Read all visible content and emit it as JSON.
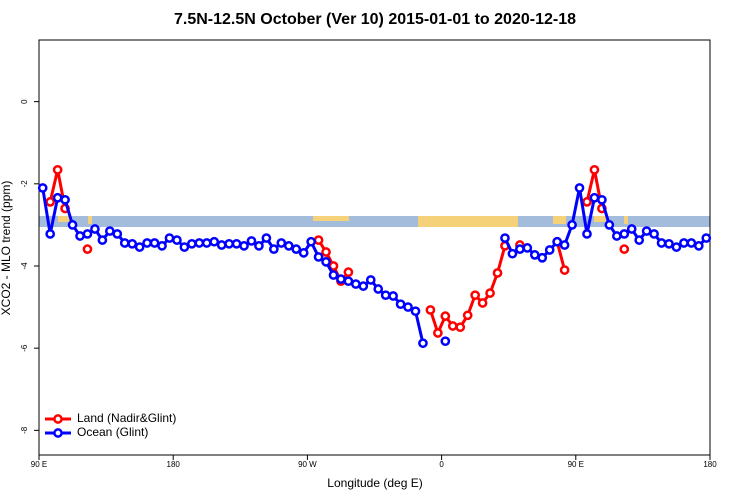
{
  "chart_data": {
    "type": "line",
    "title": "7.5N-12.5N October (Ver 10)   2015-01-01 to 2020-12-18",
    "x_label": "Longitude (deg E)",
    "y_label": "XCO2 - MLO trend (ppm)",
    "xlim": [
      90,
      540
    ],
    "xticks": [
      {
        "value": 90,
        "label": "90 E"
      },
      180,
      {
        "value": 270,
        "label": "90 W"
      },
      {
        "value": 360,
        "label": "0"
      },
      {
        "value": 450,
        "label": "90 E"
      },
      {
        "value": 540,
        "label": "180"
      }
    ],
    "ylim": [
      -8.6,
      1.5
    ],
    "yticks": [
      0,
      -2,
      -4,
      -6,
      -8
    ],
    "legend": "bottomleft",
    "x": [
      92.5,
      97.5,
      102.5,
      107.5,
      112.5,
      117.5,
      122.5,
      127.5,
      132.5,
      137.5,
      142.5,
      147.5,
      152.5,
      157.5,
      162.5,
      167.5,
      172.5,
      177.5,
      182.5,
      187.5,
      192.5,
      197.5,
      202.5,
      207.5,
      212.5,
      217.5,
      222.5,
      227.5,
      232.5,
      237.5,
      242.5,
      247.5,
      252.5,
      257.5,
      262.5,
      267.5,
      272.5,
      277.5,
      282.5,
      287.5,
      292.5,
      297.5,
      302.5,
      307.5,
      312.5,
      317.5,
      322.5,
      327.5,
      332.5,
      337.5,
      342.5,
      347.5,
      352.5,
      357.5,
      362.5,
      367.5,
      372.5,
      377.5,
      382.5,
      387.5,
      392.5,
      397.5,
      402.5,
      407.5,
      412.5,
      417.5,
      422.5,
      427.5,
      432.5,
      437.5,
      442.5,
      447.5,
      452.5,
      457.5,
      462.5,
      467.5,
      472.5,
      477.5,
      482.5,
      487.5,
      492.5,
      497.5,
      502.5,
      507.5,
      512.5,
      517.5,
      522.5,
      527.5,
      532.5,
      537.5
    ],
    "series": [
      {
        "name": "Land (Nadir&Glint)",
        "color": "#ff0000",
        "values": [
          null,
          -2.44,
          -1.66,
          -2.6,
          null,
          null,
          -3.59,
          null,
          null,
          null,
          null,
          null,
          null,
          null,
          null,
          null,
          null,
          null,
          null,
          null,
          null,
          null,
          null,
          null,
          null,
          null,
          null,
          null,
          null,
          null,
          null,
          null,
          null,
          null,
          null,
          null,
          null,
          -3.37,
          -3.66,
          -4.0,
          -4.37,
          -4.15,
          null,
          null,
          null,
          null,
          null,
          null,
          null,
          null,
          null,
          null,
          -5.07,
          -5.63,
          -5.22,
          -5.46,
          -5.49,
          -5.2,
          -4.71,
          -4.9,
          -4.66,
          -4.17,
          -3.51,
          null,
          -3.49,
          null,
          null,
          null,
          null,
          -3.41,
          -4.1,
          null,
          null,
          -2.44,
          -1.66,
          -2.6,
          null,
          null,
          -3.59,
          null,
          null,
          null,
          null,
          null,
          null,
          null,
          null,
          null,
          null,
          null
        ]
      },
      {
        "name": "Ocean (Glint)",
        "color": "#0000ff",
        "values": [
          -2.1,
          -3.22,
          -2.34,
          -2.39,
          -3.0,
          -3.27,
          -3.22,
          -3.1,
          -3.37,
          -3.15,
          -3.22,
          -3.44,
          -3.46,
          -3.54,
          -3.44,
          -3.44,
          -3.51,
          -3.32,
          -3.37,
          -3.54,
          -3.46,
          -3.44,
          -3.44,
          -3.41,
          -3.49,
          -3.46,
          -3.46,
          -3.51,
          -3.39,
          -3.51,
          -3.32,
          -3.59,
          -3.44,
          -3.51,
          -3.59,
          -3.68,
          -3.41,
          -3.78,
          -3.9,
          -4.22,
          -4.32,
          -4.37,
          -4.44,
          -4.49,
          -4.34,
          -4.56,
          -4.71,
          -4.73,
          -4.93,
          -5.0,
          -5.1,
          -5.88,
          null,
          null,
          -5.83,
          null,
          null,
          null,
          null,
          null,
          null,
          null,
          -3.32,
          -3.7,
          -3.59,
          -3.56,
          -3.73,
          -3.8,
          -3.61,
          -3.41,
          -3.49,
          -3.0,
          -2.1,
          -3.22,
          -2.34,
          -2.39,
          -3.0,
          -3.27,
          -3.22,
          -3.1,
          -3.37,
          -3.15,
          -3.22,
          -3.44,
          -3.46,
          -3.54,
          -3.44,
          -3.44,
          -3.51,
          -3.32
        ]
      }
    ]
  }
}
